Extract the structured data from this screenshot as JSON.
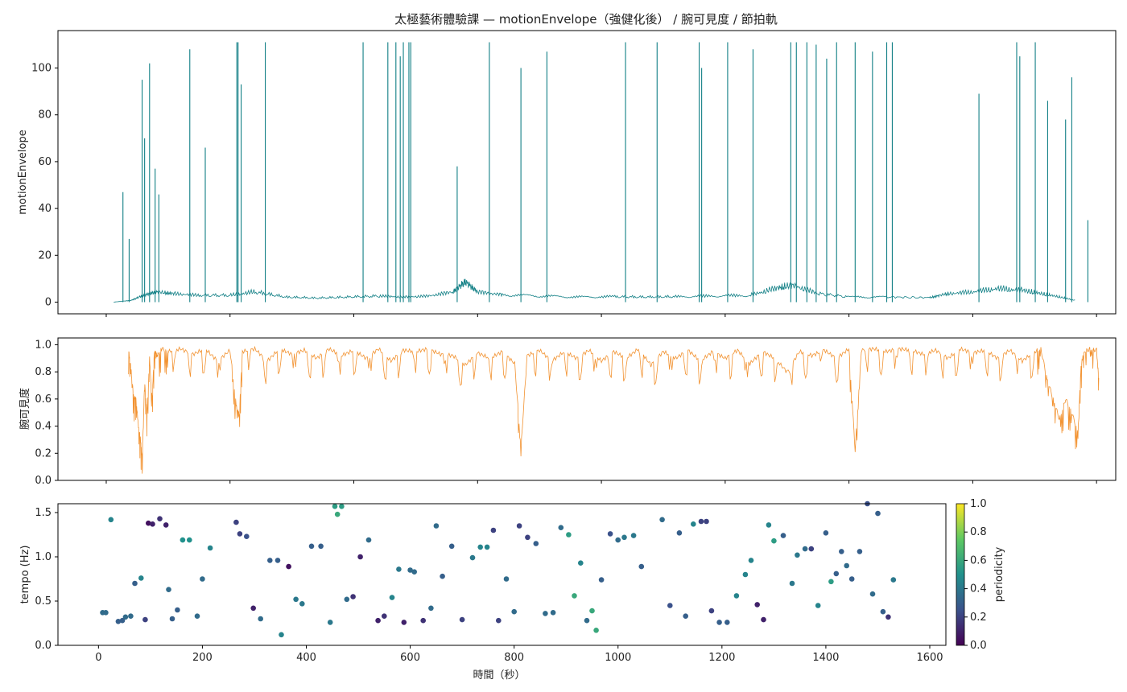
{
  "title": "太極藝術體驗課 — motionEnvelope（強健化後） / 腕可見度 / 節拍軌",
  "colors": {
    "envelope": "#117f85",
    "visibility": "#f29230",
    "axis": "#000000"
  },
  "chart_data": [
    {
      "type": "line",
      "id": "envelope",
      "ylabel": "motionEnvelope",
      "xlim": [
        -78,
        1631
      ],
      "ylim": [
        -5,
        116
      ],
      "yticks": [
        0,
        20,
        40,
        60,
        80,
        100
      ],
      "series": [
        {
          "baseline_x": [
            12,
            40,
            60,
            80,
            110,
            150,
            200,
            240,
            290,
            340,
            390,
            440,
            480,
            520,
            560,
            580,
            600,
            640,
            700,
            760,
            820,
            870,
            920,
            980,
            1040,
            1080,
            1110,
            1150,
            1200,
            1260,
            1330,
            1360,
            1400,
            1440,
            1480,
            1510,
            1540,
            1566
          ],
          "baseline_y": [
            0,
            0.5,
            2,
            3,
            2.5,
            2,
            2,
            3,
            1.5,
            1.2,
            1.5,
            1.8,
            1.5,
            1.8,
            3,
            6,
            3,
            2.2,
            1.8,
            1.5,
            1.6,
            1.5,
            1.6,
            1.8,
            2,
            4,
            5,
            2.5,
            1.5,
            1.5,
            1.3,
            2.5,
            3,
            4,
            3.5,
            2.5,
            1.5,
            0.5
          ],
          "spikes_x": [
            27,
            37,
            58,
            62,
            70,
            79,
            85,
            135,
            160,
            211,
            213,
            218,
            257,
            415,
            455,
            468,
            475,
            480,
            489,
            492,
            567,
            619,
            670,
            712,
            839,
            890,
            958,
            962,
            1004,
            1045,
            1106,
            1115,
            1132,
            1147,
            1164,
            1180,
            1210,
            1238,
            1261,
            1270,
            1410,
            1471,
            1476,
            1501,
            1521,
            1550,
            1560,
            1586
          ],
          "spikes_y": [
            47,
            27,
            95,
            70,
            102,
            57,
            46,
            108,
            66,
            111,
            111,
            93,
            111,
            111,
            111,
            111,
            105,
            111,
            111,
            111,
            58,
            111,
            100,
            107,
            111,
            111,
            111,
            100,
            111,
            108,
            111,
            111,
            111,
            110,
            104,
            111,
            111,
            107,
            111,
            111,
            89,
            111,
            105,
            111,
            86,
            78,
            96,
            35
          ]
        }
      ]
    },
    {
      "type": "line",
      "id": "visibility",
      "ylabel": "腕可見度",
      "xlim": [
        -78,
        1631
      ],
      "ylim": [
        0,
        1.05
      ],
      "yticks": [
        0.0,
        0.2,
        0.4,
        0.6,
        0.8,
        1.0
      ],
      "series": [
        {
          "x": [
            36,
            40,
            44,
            48,
            52,
            56,
            58,
            62,
            66,
            70,
            74,
            78,
            82,
            90,
            100,
            120,
            140,
            160,
            180,
            200,
            210,
            215,
            220,
            240,
            260,
            280,
            300,
            320,
            340,
            360,
            380,
            400,
            420,
            440,
            460,
            480,
            500,
            520,
            540,
            560,
            580,
            600,
            620,
            640,
            660,
            670,
            680,
            700,
            720,
            740,
            760,
            780,
            800,
            820,
            840,
            860,
            880,
            900,
            920,
            940,
            960,
            980,
            1000,
            1020,
            1040,
            1060,
            1080,
            1100,
            1120,
            1140,
            1160,
            1180,
            1200,
            1210,
            1220,
            1240,
            1260,
            1280,
            1300,
            1320,
            1340,
            1360,
            1380,
            1400,
            1420,
            1440,
            1460,
            1480,
            1500,
            1510,
            1520,
            1530,
            1540,
            1550,
            1560,
            1570,
            1575,
            1580,
            1590,
            1600,
            1604
          ],
          "y": [
            0.96,
            0.82,
            0.62,
            0.6,
            0.4,
            0.28,
            0.15,
            0.72,
            0.48,
            0.9,
            0.6,
            0.96,
            0.92,
            0.97,
            0.95,
            0.97,
            0.93,
            0.97,
            0.88,
            0.96,
            0.55,
            0.48,
            0.95,
            0.97,
            0.88,
            0.97,
            0.93,
            0.96,
            0.9,
            0.97,
            0.92,
            0.96,
            0.9,
            0.97,
            0.88,
            0.96,
            0.95,
            0.97,
            0.93,
            0.92,
            0.85,
            0.94,
            0.9,
            0.95,
            0.86,
            0.24,
            0.92,
            0.96,
            0.88,
            0.95,
            0.9,
            0.96,
            0.88,
            0.95,
            0.9,
            0.97,
            0.85,
            0.95,
            0.9,
            0.96,
            0.88,
            0.95,
            0.9,
            0.96,
            0.86,
            0.95,
            0.9,
            0.8,
            0.95,
            0.92,
            0.96,
            0.9,
            0.97,
            0.22,
            0.96,
            0.97,
            0.95,
            0.97,
            0.96,
            0.93,
            0.96,
            0.9,
            0.97,
            0.94,
            0.96,
            0.9,
            0.96,
            0.88,
            0.95,
            0.97,
            0.75,
            0.6,
            0.45,
            0.6,
            0.5,
            0.35,
            0.85,
            0.95,
            0.97,
            0.96,
            0.72
          ]
        }
      ]
    },
    {
      "type": "scatter",
      "id": "tempo",
      "ylabel": "tempo (Hz)",
      "xlabel": "時間（秒）",
      "xlim": [
        -78,
        1631
      ],
      "ylim": [
        0,
        1.6
      ],
      "xticks": [
        0,
        200,
        400,
        600,
        800,
        1000,
        1200,
        1400,
        1600
      ],
      "yticks": [
        0.0,
        0.5,
        1.0,
        1.5
      ],
      "colorbar": {
        "label": "periodicity",
        "ticks": [
          0.0,
          0.2,
          0.4,
          0.6,
          0.8,
          1.0
        ]
      },
      "points": [
        {
          "x": 8,
          "y": 0.37,
          "c": 0.35
        },
        {
          "x": 14,
          "y": 0.37,
          "c": 0.35
        },
        {
          "x": 24,
          "y": 1.42,
          "c": 0.45
        },
        {
          "x": 38,
          "y": 0.27,
          "c": 0.3
        },
        {
          "x": 46,
          "y": 0.28,
          "c": 0.3
        },
        {
          "x": 52,
          "y": 0.32,
          "c": 0.35
        },
        {
          "x": 62,
          "y": 0.33,
          "c": 0.35
        },
        {
          "x": 70,
          "y": 0.7,
          "c": 0.3
        },
        {
          "x": 82,
          "y": 0.76,
          "c": 0.45
        },
        {
          "x": 90,
          "y": 0.29,
          "c": 0.2
        },
        {
          "x": 96,
          "y": 1.38,
          "c": 0.05
        },
        {
          "x": 104,
          "y": 1.37,
          "c": 0.1
        },
        {
          "x": 118,
          "y": 1.43,
          "c": 0.15
        },
        {
          "x": 130,
          "y": 1.36,
          "c": 0.1
        },
        {
          "x": 135,
          "y": 0.63,
          "c": 0.35
        },
        {
          "x": 142,
          "y": 0.3,
          "c": 0.3
        },
        {
          "x": 152,
          "y": 0.4,
          "c": 0.3
        },
        {
          "x": 162,
          "y": 1.19,
          "c": 0.5
        },
        {
          "x": 175,
          "y": 1.19,
          "c": 0.5
        },
        {
          "x": 190,
          "y": 0.33,
          "c": 0.35
        },
        {
          "x": 200,
          "y": 0.75,
          "c": 0.35
        },
        {
          "x": 215,
          "y": 1.1,
          "c": 0.45
        },
        {
          "x": 265,
          "y": 1.39,
          "c": 0.2
        },
        {
          "x": 272,
          "y": 1.26,
          "c": 0.2
        },
        {
          "x": 285,
          "y": 1.23,
          "c": 0.25
        },
        {
          "x": 298,
          "y": 0.42,
          "c": 0.1
        },
        {
          "x": 312,
          "y": 0.3,
          "c": 0.35
        },
        {
          "x": 330,
          "y": 0.96,
          "c": 0.3
        },
        {
          "x": 345,
          "y": 0.96,
          "c": 0.3
        },
        {
          "x": 352,
          "y": 0.12,
          "c": 0.45
        },
        {
          "x": 366,
          "y": 0.89,
          "c": 0.05
        },
        {
          "x": 380,
          "y": 0.52,
          "c": 0.4
        },
        {
          "x": 392,
          "y": 0.47,
          "c": 0.4
        },
        {
          "x": 410,
          "y": 1.12,
          "c": 0.3
        },
        {
          "x": 428,
          "y": 1.12,
          "c": 0.3
        },
        {
          "x": 446,
          "y": 0.26,
          "c": 0.4
        },
        {
          "x": 455,
          "y": 1.57,
          "c": 0.55
        },
        {
          "x": 460,
          "y": 1.48,
          "c": 0.6
        },
        {
          "x": 468,
          "y": 1.57,
          "c": 0.55
        },
        {
          "x": 478,
          "y": 0.52,
          "c": 0.35
        },
        {
          "x": 490,
          "y": 0.55,
          "c": 0.15
        },
        {
          "x": 504,
          "y": 1.0,
          "c": 0.1
        },
        {
          "x": 520,
          "y": 1.19,
          "c": 0.35
        },
        {
          "x": 538,
          "y": 0.28,
          "c": 0.1
        },
        {
          "x": 550,
          "y": 0.33,
          "c": 0.15
        },
        {
          "x": 565,
          "y": 0.54,
          "c": 0.45
        },
        {
          "x": 578,
          "y": 0.86,
          "c": 0.4
        },
        {
          "x": 588,
          "y": 0.26,
          "c": 0.1
        },
        {
          "x": 600,
          "y": 0.85,
          "c": 0.35
        },
        {
          "x": 608,
          "y": 0.83,
          "c": 0.35
        },
        {
          "x": 625,
          "y": 0.28,
          "c": 0.15
        },
        {
          "x": 640,
          "y": 0.42,
          "c": 0.35
        },
        {
          "x": 650,
          "y": 1.35,
          "c": 0.35
        },
        {
          "x": 662,
          "y": 0.78,
          "c": 0.3
        },
        {
          "x": 680,
          "y": 1.12,
          "c": 0.3
        },
        {
          "x": 700,
          "y": 0.29,
          "c": 0.2
        },
        {
          "x": 720,
          "y": 0.99,
          "c": 0.4
        },
        {
          "x": 735,
          "y": 1.11,
          "c": 0.45
        },
        {
          "x": 748,
          "y": 1.11,
          "c": 0.45
        },
        {
          "x": 760,
          "y": 1.3,
          "c": 0.2
        },
        {
          "x": 770,
          "y": 0.28,
          "c": 0.2
        },
        {
          "x": 785,
          "y": 0.75,
          "c": 0.35
        },
        {
          "x": 800,
          "y": 0.38,
          "c": 0.35
        },
        {
          "x": 810,
          "y": 1.35,
          "c": 0.2
        },
        {
          "x": 826,
          "y": 1.22,
          "c": 0.2
        },
        {
          "x": 842,
          "y": 1.15,
          "c": 0.3
        },
        {
          "x": 860,
          "y": 0.36,
          "c": 0.35
        },
        {
          "x": 875,
          "y": 0.37,
          "c": 0.35
        },
        {
          "x": 890,
          "y": 1.33,
          "c": 0.35
        },
        {
          "x": 905,
          "y": 1.25,
          "c": 0.55
        },
        {
          "x": 916,
          "y": 0.56,
          "c": 0.6
        },
        {
          "x": 928,
          "y": 0.93,
          "c": 0.45
        },
        {
          "x": 940,
          "y": 0.28,
          "c": 0.35
        },
        {
          "x": 950,
          "y": 0.39,
          "c": 0.6
        },
        {
          "x": 958,
          "y": 0.17,
          "c": 0.6
        },
        {
          "x": 968,
          "y": 0.74,
          "c": 0.3
        },
        {
          "x": 985,
          "y": 1.26,
          "c": 0.25
        },
        {
          "x": 1000,
          "y": 1.19,
          "c": 0.35
        },
        {
          "x": 1012,
          "y": 1.22,
          "c": 0.4
        },
        {
          "x": 1030,
          "y": 1.24,
          "c": 0.4
        },
        {
          "x": 1045,
          "y": 0.89,
          "c": 0.3
        },
        {
          "x": 1085,
          "y": 1.42,
          "c": 0.35
        },
        {
          "x": 1100,
          "y": 0.45,
          "c": 0.25
        },
        {
          "x": 1118,
          "y": 1.27,
          "c": 0.3
        },
        {
          "x": 1130,
          "y": 0.33,
          "c": 0.3
        },
        {
          "x": 1145,
          "y": 1.37,
          "c": 0.45
        },
        {
          "x": 1160,
          "y": 1.4,
          "c": 0.2
        },
        {
          "x": 1170,
          "y": 1.4,
          "c": 0.2
        },
        {
          "x": 1180,
          "y": 0.39,
          "c": 0.2
        },
        {
          "x": 1195,
          "y": 0.26,
          "c": 0.3
        },
        {
          "x": 1210,
          "y": 0.26,
          "c": 0.3
        },
        {
          "x": 1228,
          "y": 0.56,
          "c": 0.45
        },
        {
          "x": 1245,
          "y": 0.8,
          "c": 0.45
        },
        {
          "x": 1256,
          "y": 0.96,
          "c": 0.45
        },
        {
          "x": 1268,
          "y": 0.46,
          "c": 0.1
        },
        {
          "x": 1280,
          "y": 0.29,
          "c": 0.1
        },
        {
          "x": 1290,
          "y": 1.36,
          "c": 0.45
        },
        {
          "x": 1300,
          "y": 1.18,
          "c": 0.55
        },
        {
          "x": 1318,
          "y": 1.24,
          "c": 0.3
        },
        {
          "x": 1335,
          "y": 0.7,
          "c": 0.4
        },
        {
          "x": 1345,
          "y": 1.02,
          "c": 0.4
        },
        {
          "x": 1360,
          "y": 1.09,
          "c": 0.35
        },
        {
          "x": 1372,
          "y": 1.09,
          "c": 0.2
        },
        {
          "x": 1385,
          "y": 0.45,
          "c": 0.45
        },
        {
          "x": 1400,
          "y": 1.27,
          "c": 0.3
        },
        {
          "x": 1410,
          "y": 0.72,
          "c": 0.55
        },
        {
          "x": 1420,
          "y": 0.81,
          "c": 0.3
        },
        {
          "x": 1430,
          "y": 1.06,
          "c": 0.3
        },
        {
          "x": 1440,
          "y": 0.9,
          "c": 0.35
        },
        {
          "x": 1450,
          "y": 0.75,
          "c": 0.3
        },
        {
          "x": 1465,
          "y": 1.06,
          "c": 0.3
        },
        {
          "x": 1480,
          "y": 1.6,
          "c": 0.25
        },
        {
          "x": 1490,
          "y": 0.58,
          "c": 0.35
        },
        {
          "x": 1500,
          "y": 1.49,
          "c": 0.3
        },
        {
          "x": 1510,
          "y": 0.38,
          "c": 0.3
        },
        {
          "x": 1520,
          "y": 0.32,
          "c": 0.15
        },
        {
          "x": 1530,
          "y": 0.74,
          "c": 0.4
        }
      ]
    }
  ]
}
